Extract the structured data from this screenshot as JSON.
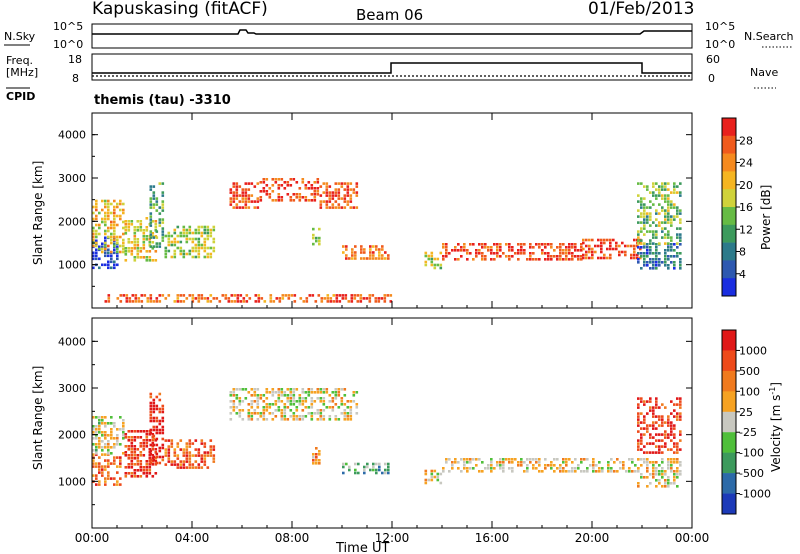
{
  "header": {
    "station": "Kapuskasing (fitACF)",
    "beam": "Beam 06",
    "date": "01/Feb/2013"
  },
  "top_panels": {
    "nsky_label": "N.Sky",
    "nsky_ticks": [
      "10^5",
      "10^0"
    ],
    "nsearch_label": "N.Search",
    "nsearch_ticks": [
      "10^5",
      "10^0"
    ],
    "freq_label": "Freq.",
    "freq_unit": "[MHz]",
    "freq_ticks": [
      "18",
      "8"
    ],
    "nave_label": "Nave",
    "nave_ticks": [
      "60",
      "0"
    ],
    "cpid_label": "CPID",
    "cpid_text": "themis (tau) -3310"
  },
  "chart_data": [
    {
      "type": "heatmap",
      "name": "power",
      "xlabel": "",
      "ylabel": "Slant Range [km]",
      "x_range_hours": [
        0,
        24
      ],
      "ylim": [
        0,
        4500
      ],
      "yticks": [
        "1000",
        "2000",
        "3000",
        "4000"
      ],
      "colorbar": {
        "label": "Power [dB]",
        "ticks": [
          "28",
          "24",
          "20",
          "16",
          "12",
          "8",
          "4"
        ],
        "colors": [
          "#e8201c",
          "#f05a1c",
          "#f58a1f",
          "#f5b521",
          "#cfd23a",
          "#66bb44",
          "#3c9a5c",
          "#2c7a8a",
          "#2d58b0",
          "#1a2ee0"
        ]
      },
      "regions": [
        {
          "t": [
            0.0,
            1.0
          ],
          "r": [
            950,
            1650
          ],
          "level": 0.92
        },
        {
          "t": [
            0.0,
            1.3
          ],
          "r": [
            1300,
            2500
          ],
          "level": 0.35
        },
        {
          "t": [
            1.3,
            2.6
          ],
          "r": [
            1100,
            2100
          ],
          "level": 0.4
        },
        {
          "t": [
            2.3,
            2.9
          ],
          "r": [
            1400,
            2900
          ],
          "level": 0.62
        },
        {
          "t": [
            2.9,
            4.9
          ],
          "r": [
            1200,
            1900
          ],
          "level": 0.48
        },
        {
          "t": [
            5.5,
            6.7
          ],
          "r": [
            2300,
            2900
          ],
          "level": 0.1
        },
        {
          "t": [
            6.7,
            9.1
          ],
          "r": [
            2450,
            3000
          ],
          "level": 0.1
        },
        {
          "t": [
            8.8,
            9.1
          ],
          "r": [
            1450,
            1850
          ],
          "level": 0.55
        },
        {
          "t": [
            9.1,
            10.6
          ],
          "r": [
            2300,
            2900
          ],
          "level": 0.12
        },
        {
          "t": [
            10.0,
            11.9
          ],
          "r": [
            1150,
            1450
          ],
          "level": 0.2
        },
        {
          "t": [
            13.3,
            14.0
          ],
          "r": [
            900,
            1300
          ],
          "level": 0.45
        },
        {
          "t": [
            14.0,
            19.6
          ],
          "r": [
            1150,
            1500
          ],
          "level": 0.1
        },
        {
          "t": [
            19.6,
            21.9
          ],
          "r": [
            1150,
            1600
          ],
          "level": 0.12
        },
        {
          "t": [
            21.8,
            23.5
          ],
          "r": [
            900,
            1500
          ],
          "level": 0.78
        },
        {
          "t": [
            21.8,
            23.5
          ],
          "r": [
            1500,
            2900
          ],
          "level": 0.55
        },
        {
          "t": [
            0.5,
            12.0
          ],
          "r": [
            120,
            320
          ],
          "level": 0.15
        }
      ]
    },
    {
      "type": "heatmap",
      "name": "velocity",
      "xlabel": "Time UT",
      "ylabel": "Slant Range [km]",
      "x_range_hours": [
        0,
        24
      ],
      "ylim": [
        0,
        4500
      ],
      "yticks": [
        "1000",
        "2000",
        "3000",
        "4000"
      ],
      "xticks": [
        "00:00",
        "04:00",
        "08:00",
        "12:00",
        "16:00",
        "20:00",
        "00:00"
      ],
      "colorbar": {
        "label": "Velocity [m s",
        "label_superscript": "-1",
        "label_close": "]",
        "ticks": [
          "1000",
          "500",
          "100",
          "25",
          "-25",
          "-100",
          "-500",
          "-1000"
        ],
        "colors": [
          "#e01818",
          "#ee4a1a",
          "#f07a1e",
          "#f6a222",
          "#c8c8c0",
          "#4fbf3a",
          "#3c9a5c",
          "#2c6aa8",
          "#1c3ab8"
        ]
      },
      "regions": [
        {
          "t": [
            0.0,
            1.1
          ],
          "r": [
            900,
            1600
          ],
          "level": 0.25
        },
        {
          "t": [
            0.0,
            1.3
          ],
          "r": [
            1600,
            2400
          ],
          "level": 0.5
        },
        {
          "t": [
            1.3,
            2.6
          ],
          "r": [
            1100,
            2100
          ],
          "level": 0.12
        },
        {
          "t": [
            2.3,
            2.9
          ],
          "r": [
            1400,
            2900
          ],
          "level": 0.06
        },
        {
          "t": [
            2.9,
            4.9
          ],
          "r": [
            1300,
            1900
          ],
          "level": 0.2
        },
        {
          "t": [
            5.5,
            10.6
          ],
          "r": [
            2300,
            3000
          ],
          "level": 0.45
        },
        {
          "t": [
            8.8,
            9.1
          ],
          "r": [
            1400,
            1800
          ],
          "level": 0.3
        },
        {
          "t": [
            10.0,
            11.9
          ],
          "r": [
            1150,
            1400
          ],
          "level": 0.65
        },
        {
          "t": [
            13.3,
            14.0
          ],
          "r": [
            950,
            1250
          ],
          "level": 0.45
        },
        {
          "t": [
            14.0,
            21.9
          ],
          "r": [
            1200,
            1500
          ],
          "level": 0.45
        },
        {
          "t": [
            21.8,
            23.5
          ],
          "r": [
            900,
            1500
          ],
          "level": 0.45
        },
        {
          "t": [
            21.8,
            23.5
          ],
          "r": [
            1600,
            2800
          ],
          "level": 0.1
        }
      ]
    }
  ]
}
